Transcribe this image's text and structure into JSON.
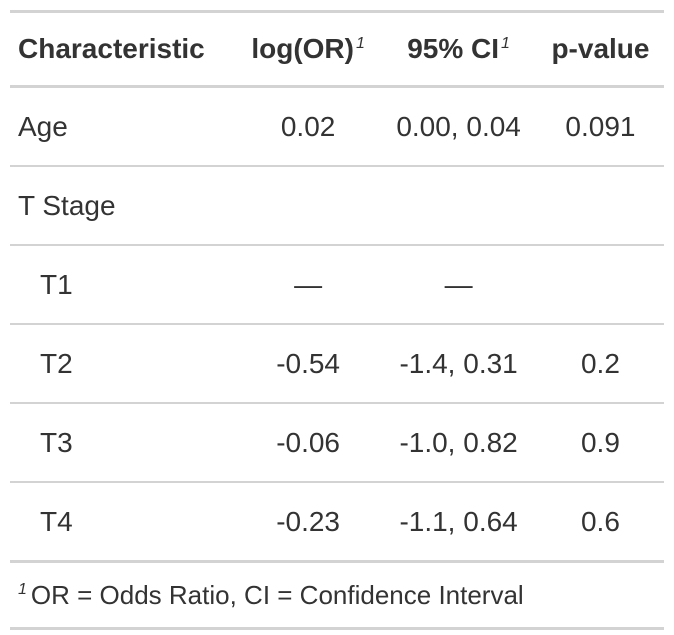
{
  "table": {
    "headers": {
      "characteristic": "Characteristic",
      "estimate": "log(OR)",
      "ci": "95% CI",
      "pvalue": "p-value",
      "footnote_mark": "1"
    },
    "rows": [
      {
        "label": "Age",
        "estimate": "0.02",
        "ci": "0.00, 0.04",
        "pvalue": "0.091"
      },
      {
        "label": "T Stage",
        "estimate": "",
        "ci": "",
        "pvalue": ""
      },
      {
        "label": "T1",
        "estimate": "—",
        "ci": "—",
        "pvalue": ""
      },
      {
        "label": "T2",
        "estimate": "-0.54",
        "ci": "-1.4, 0.31",
        "pvalue": "0.2"
      },
      {
        "label": "T3",
        "estimate": "-0.06",
        "ci": "-1.0, 0.82",
        "pvalue": "0.9"
      },
      {
        "label": "T4",
        "estimate": "-0.23",
        "ci": "-1.1, 0.64",
        "pvalue": "0.6"
      }
    ],
    "footnote": {
      "mark": "1",
      "text": "OR = Odds Ratio, CI = Confidence Interval"
    }
  }
}
